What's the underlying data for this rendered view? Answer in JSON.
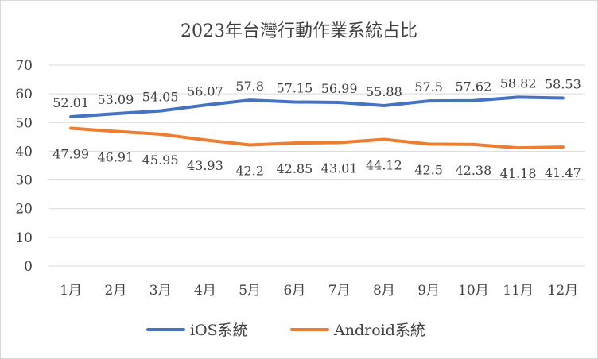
{
  "chart_data": {
    "type": "line",
    "title": "2023年台灣行動作業系統占比",
    "categories": [
      "1月",
      "2月",
      "3月",
      "4月",
      "5月",
      "6月",
      "7月",
      "8月",
      "9月",
      "10月",
      "11月",
      "12月"
    ],
    "ylim": [
      0,
      70
    ],
    "yticks": [
      0,
      10,
      20,
      30,
      40,
      50,
      60,
      70
    ],
    "grid": true,
    "legend_position": "bottom",
    "series": [
      {
        "name": "iOS系統",
        "color": "#4472C4",
        "values": [
          52.01,
          53.09,
          54.05,
          56.07,
          57.8,
          57.15,
          56.99,
          55.88,
          57.5,
          57.62,
          58.82,
          58.53
        ]
      },
      {
        "name": "Android系統",
        "color": "#ED7D31",
        "values": [
          47.99,
          46.91,
          45.95,
          43.93,
          42.2,
          42.85,
          43.01,
          44.12,
          42.5,
          42.38,
          41.18,
          41.47
        ]
      }
    ]
  }
}
